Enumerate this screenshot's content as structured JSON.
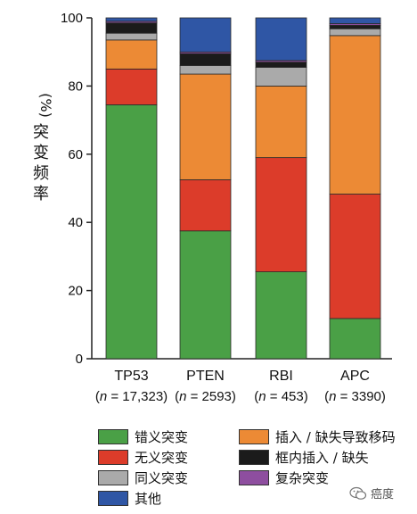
{
  "chart_data": {
    "type": "bar",
    "stacked": true,
    "ylabel": "(%) 突变频率",
    "ylim": [
      0,
      100
    ],
    "yticks": [
      0,
      20,
      40,
      60,
      80,
      100
    ],
    "categories": [
      "TP53",
      "PTEN",
      "RBI",
      "APC"
    ],
    "category_sublabels": [
      "(n = 17,323)",
      "(n = 2593)",
      "(n = 453)",
      "(n = 3390)"
    ],
    "series": [
      {
        "name": "错义突变",
        "color": "#4aa046",
        "values": [
          74.5,
          37.5,
          25.5,
          11.8
        ]
      },
      {
        "name": "无义突变",
        "color": "#dc3c2a",
        "values": [
          10.5,
          15.0,
          33.5,
          36.5
        ]
      },
      {
        "name": "插入 / 缺失导致移码",
        "color": "#ec8a35",
        "values": [
          8.5,
          31.0,
          21.0,
          46.5
        ]
      },
      {
        "name": "同义突变",
        "color": "#aaaaaa",
        "values": [
          2.0,
          2.5,
          5.5,
          2.0
        ]
      },
      {
        "name": "框内插入 / 缺失",
        "color": "#1b1b1b",
        "values": [
          3.0,
          3.5,
          1.5,
          1.0
        ]
      },
      {
        "name": "复杂突变",
        "color": "#8e4e9f",
        "values": [
          0.5,
          0.5,
          0.5,
          0.5
        ]
      },
      {
        "name": "其他",
        "color": "#2f56a5",
        "values": [
          1.0,
          10.0,
          12.5,
          1.7
        ]
      }
    ],
    "legend": {
      "placement": "bottom",
      "order": [
        "错义突变",
        "插入 / 缺失导致移码",
        "无义突变",
        "框内插入 / 缺失",
        "同义突变",
        "复杂突变",
        "其他"
      ]
    },
    "grid": false
  },
  "watermark": {
    "text": "癌度"
  }
}
